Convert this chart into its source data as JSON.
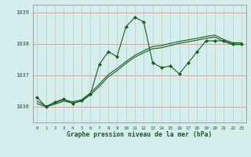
{
  "title": "Graphe pression niveau de la mer (hPa)",
  "bg_color": "#d4eeee",
  "line_color": "#1a5c1a",
  "marker_color": "#1a5c1a",
  "grid_color_h": "#c8a0a0",
  "grid_color_v": "#c8c8b8",
  "axis_label_color": "#1a5c1a",
  "border_color": "#888888",
  "xlim": [
    -0.5,
    23.5
  ],
  "ylim": [
    1035.5,
    1039.25
  ],
  "yticks": [
    1036,
    1037,
    1038,
    1039
  ],
  "xticks": [
    0,
    1,
    2,
    3,
    4,
    5,
    6,
    7,
    8,
    9,
    10,
    11,
    12,
    13,
    14,
    15,
    16,
    17,
    18,
    19,
    20,
    21,
    22,
    23
  ],
  "series1_x": [
    0,
    1,
    2,
    3,
    4,
    5,
    6,
    7,
    8,
    9,
    10,
    11,
    12,
    13,
    14,
    15,
    16,
    17,
    18,
    19,
    20,
    21,
    22,
    23
  ],
  "series1_y": [
    1036.3,
    1036.0,
    1036.15,
    1036.25,
    1036.1,
    1036.2,
    1036.4,
    1037.35,
    1037.75,
    1037.6,
    1038.55,
    1038.85,
    1038.7,
    1037.4,
    1037.25,
    1037.3,
    1037.05,
    1037.4,
    1037.75,
    1038.1,
    1038.1,
    1038.1,
    1038.0,
    1038.0
  ],
  "series2_x": [
    0,
    1,
    2,
    3,
    4,
    5,
    6,
    7,
    8,
    9,
    10,
    11,
    12,
    13,
    14,
    15,
    16,
    17,
    18,
    19,
    20,
    21,
    22,
    23
  ],
  "series2_y": [
    1036.1,
    1036.0,
    1036.08,
    1036.18,
    1036.12,
    1036.18,
    1036.38,
    1036.65,
    1036.95,
    1037.15,
    1037.38,
    1037.58,
    1037.72,
    1037.85,
    1037.88,
    1037.95,
    1038.02,
    1038.07,
    1038.12,
    1038.18,
    1038.22,
    1038.08,
    1037.98,
    1037.98
  ],
  "series3_x": [
    0,
    1,
    2,
    3,
    4,
    5,
    6,
    7,
    8,
    9,
    10,
    11,
    12,
    13,
    14,
    15,
    16,
    17,
    18,
    19,
    20,
    21,
    22,
    23
  ],
  "series3_y": [
    1036.18,
    1036.02,
    1036.12,
    1036.22,
    1036.16,
    1036.22,
    1036.44,
    1036.72,
    1037.02,
    1037.22,
    1037.44,
    1037.64,
    1037.78,
    1037.92,
    1037.95,
    1038.02,
    1038.08,
    1038.13,
    1038.18,
    1038.24,
    1038.28,
    1038.14,
    1038.04,
    1038.04
  ]
}
